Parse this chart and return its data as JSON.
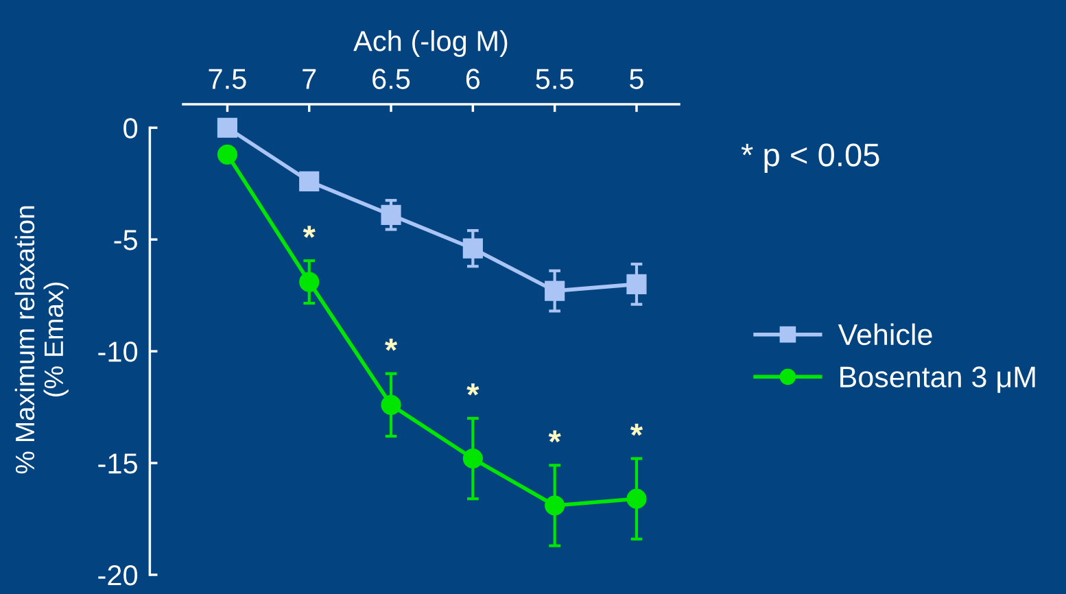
{
  "chart_data": {
    "type": "line",
    "xlabel": "Ach (-log M)",
    "ylabel": "% Maximum relaxation\n(% Emax)",
    "x": [
      7.5,
      7,
      6.5,
      6,
      5.5,
      5
    ],
    "xlim": [
      7.77,
      4.74
    ],
    "xticks": [
      7.5,
      7,
      6.5,
      6,
      5.5,
      5
    ],
    "ylim": [
      -20,
      1.05
    ],
    "yticks": [
      0,
      -5,
      -10,
      -15,
      -20
    ],
    "series": [
      {
        "name": "Vehicle",
        "color": "#a9c4f5",
        "marker": "square",
        "values": [
          0,
          -2.4,
          -3.9,
          -5.4,
          -7.3,
          -7.0
        ],
        "errors": [
          null,
          null,
          0.65,
          0.8,
          0.9,
          0.9
        ]
      },
      {
        "name": "Bosentan 3 μM",
        "color": "#00e600",
        "marker": "circle",
        "values": [
          -1.2,
          -6.9,
          -12.4,
          -14.8,
          -16.9,
          -16.6
        ],
        "errors": [
          null,
          0.95,
          1.4,
          1.8,
          1.8,
          1.8
        ]
      }
    ],
    "annotations": [
      "* p < 0.05",
      {
        "text": "*",
        "x": 7,
        "y": -6.9
      },
      {
        "text": "*",
        "x": 6.5,
        "y": -12.4
      },
      {
        "text": "*",
        "x": 6,
        "y": -14.8
      },
      {
        "text": "*",
        "x": 5.5,
        "y": -16.9
      },
      {
        "text": "*",
        "x": 5,
        "y": -16.6
      }
    ],
    "legend": "right",
    "grid": false
  }
}
